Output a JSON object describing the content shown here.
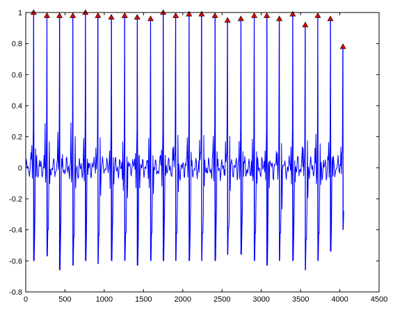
{
  "chart_data": {
    "type": "line",
    "title": "",
    "xlabel": "",
    "ylabel": "",
    "xlim": [
      0,
      4500
    ],
    "ylim": [
      -0.8,
      1
    ],
    "x_ticks": [
      0,
      500,
      1000,
      1500,
      2000,
      2500,
      3000,
      3500,
      4000,
      4500
    ],
    "x_tick_labels": [
      "0",
      "500",
      "1000",
      "1500",
      "2000",
      "2500",
      "3000",
      "3500",
      "4000",
      "4500"
    ],
    "y_ticks": [
      -0.8,
      -0.6,
      -0.4,
      -0.2,
      0,
      0.2,
      0.4,
      0.6,
      0.8,
      1
    ],
    "y_tick_labels": [
      "-0.8",
      "-0.6",
      "-0.4",
      "-0.2",
      "0",
      "0.2",
      "0.4",
      "0.6",
      "0.8",
      "1"
    ],
    "grid": false,
    "legend": "none",
    "line_color": "#0000ff",
    "marker_color": "#dd0000",
    "marker_edge_color": "#000000",
    "series": [
      {
        "type": "line",
        "x_start": 0,
        "x_end": 4050,
        "description_free": true,
        "beats": [
          {
            "x": 100,
            "peak": 1.0,
            "trough": -0.6
          },
          {
            "x": 270,
            "peak": 0.98,
            "trough": -0.57
          },
          {
            "x": 430,
            "peak": 0.98,
            "trough": -0.66
          },
          {
            "x": 600,
            "peak": 0.98,
            "trough": -0.63
          },
          {
            "x": 760,
            "peak": 1.0,
            "trough": -0.6
          },
          {
            "x": 920,
            "peak": 0.98,
            "trough": -0.62
          },
          {
            "x": 1090,
            "peak": 0.97,
            "trough": -0.6
          },
          {
            "x": 1260,
            "peak": 0.98,
            "trough": -0.6
          },
          {
            "x": 1420,
            "peak": 0.97,
            "trough": -0.63
          },
          {
            "x": 1590,
            "peak": 0.96,
            "trough": -0.6
          },
          {
            "x": 1750,
            "peak": 1.0,
            "trough": -0.6
          },
          {
            "x": 1910,
            "peak": 0.98,
            "trough": -0.6
          },
          {
            "x": 2080,
            "peak": 0.99,
            "trough": -0.6
          },
          {
            "x": 2240,
            "peak": 0.99,
            "trough": -0.6
          },
          {
            "x": 2410,
            "peak": 0.98,
            "trough": -0.6
          },
          {
            "x": 2570,
            "peak": 0.95,
            "trough": -0.56
          },
          {
            "x": 2740,
            "peak": 0.96,
            "trough": -0.56
          },
          {
            "x": 2910,
            "peak": 0.98,
            "trough": -0.6
          },
          {
            "x": 3070,
            "peak": 0.98,
            "trough": -0.63
          },
          {
            "x": 3230,
            "peak": 0.96,
            "trough": -0.6
          },
          {
            "x": 3400,
            "peak": 0.99,
            "trough": -0.6
          },
          {
            "x": 3560,
            "peak": 0.92,
            "trough": -0.66
          },
          {
            "x": 3720,
            "peak": 0.98,
            "trough": -0.6
          },
          {
            "x": 3880,
            "peak": 0.96,
            "trough": -0.54
          },
          {
            "x": 4040,
            "peak": 0.78,
            "trough": -0.4
          }
        ]
      },
      {
        "type": "scatter",
        "marker": "triangle-up",
        "x": [
          100,
          270,
          430,
          600,
          760,
          920,
          1090,
          1260,
          1420,
          1590,
          1750,
          1910,
          2080,
          2240,
          2410,
          2570,
          2740,
          2910,
          3070,
          3230,
          3400,
          3560,
          3720,
          3880,
          4040
        ],
        "y": [
          1.0,
          0.98,
          0.98,
          0.98,
          1.0,
          0.98,
          0.97,
          0.98,
          0.97,
          0.96,
          1.0,
          0.98,
          0.99,
          0.99,
          0.98,
          0.95,
          0.96,
          0.98,
          0.98,
          0.96,
          0.99,
          0.92,
          0.98,
          0.96,
          0.78
        ]
      }
    ]
  }
}
